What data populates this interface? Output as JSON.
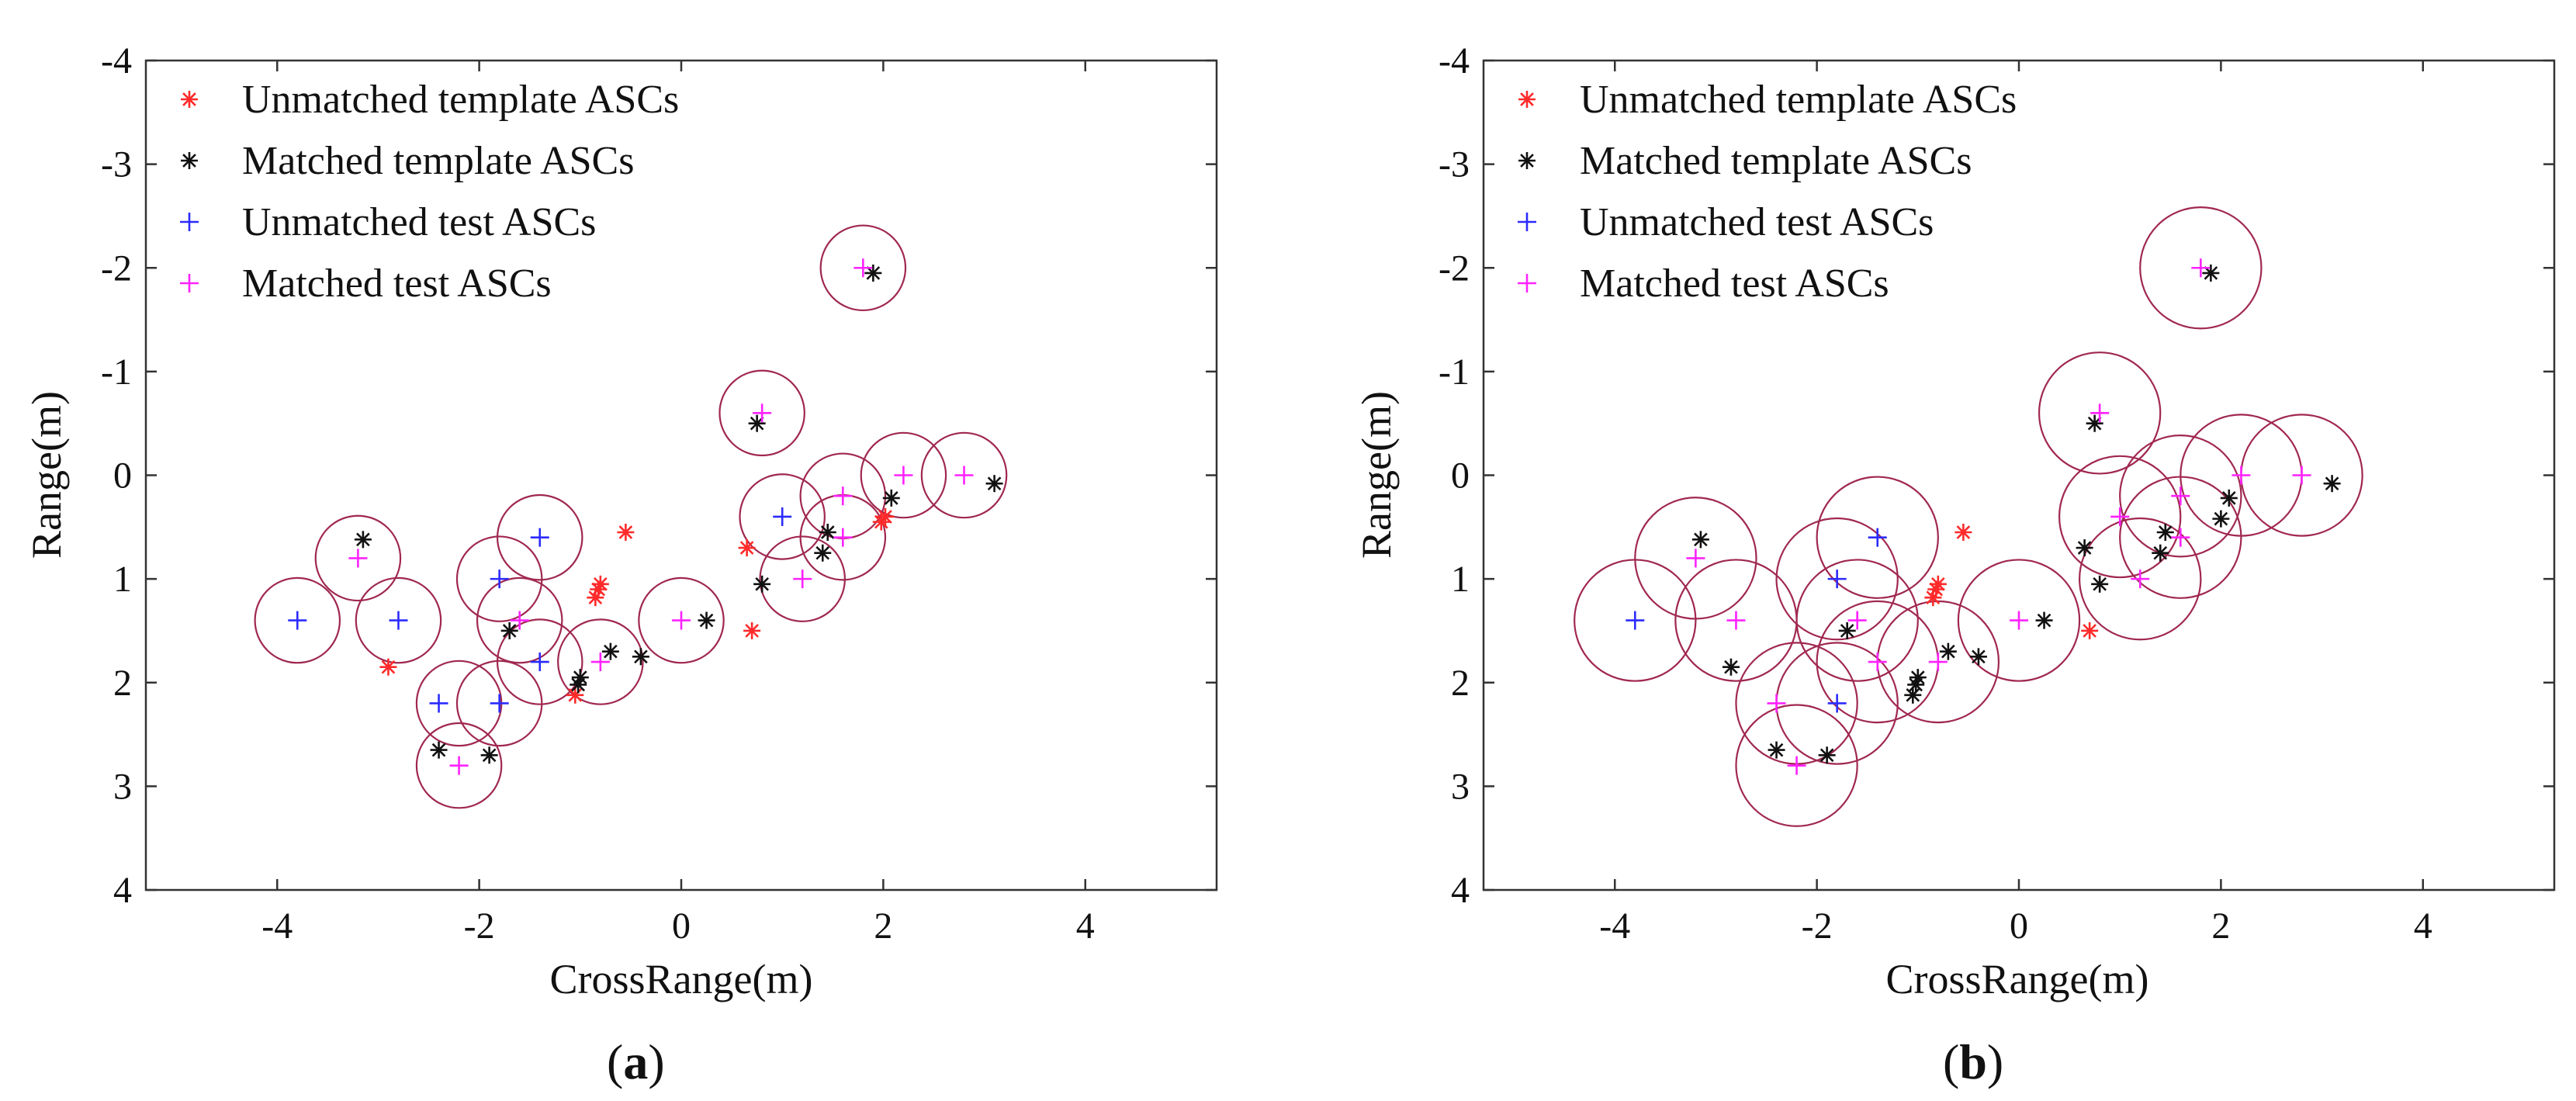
{
  "colors": {
    "unmatched_template": "#ff2a2a",
    "matched_template": "#111111",
    "unmatched_test": "#2b2bff",
    "matched_test": "#ff22ff",
    "circle": "#a0284f"
  },
  "chart_data": [
    {
      "type": "scatter",
      "panel_label": "a",
      "xlabel": "CrossRange(m)",
      "ylabel": "Range(m)",
      "xlim": [
        -5.3,
        5.3
      ],
      "ylim": [
        4,
        -4
      ],
      "xticks": [
        -4,
        -2,
        0,
        2,
        4
      ],
      "yticks": [
        -4,
        -3,
        -2,
        -1,
        0,
        1,
        2,
        3,
        4
      ],
      "xtick_labels": [
        "-4",
        "-2",
        "0",
        "2",
        "4"
      ],
      "ytick_labels": [
        "-4",
        "-3",
        "-2",
        "-1",
        "0",
        "1",
        "2",
        "3",
        "4"
      ],
      "legend": [
        {
          "label": "Unmatched template ASCs",
          "key": "unmatched_template",
          "marker": "*"
        },
        {
          "label": "Matched template ASCs",
          "key": "matched_template",
          "marker": "*"
        },
        {
          "label": "Unmatched test ASCs",
          "key": "unmatched_test",
          "marker": "+"
        },
        {
          "label": "Matched test ASCs",
          "key": "matched_test",
          "marker": "+"
        }
      ],
      "circle_radius": 0.42,
      "circles": [
        [
          -3.8,
          1.4
        ],
        [
          -3.2,
          0.8
        ],
        [
          -2.8,
          1.4
        ],
        [
          -2.2,
          2.2
        ],
        [
          -1.8,
          2.2
        ],
        [
          -1.8,
          1.0
        ],
        [
          -1.6,
          1.4
        ],
        [
          -1.4,
          0.6
        ],
        [
          -1.4,
          1.8
        ],
        [
          -0.8,
          1.8
        ],
        [
          -2.2,
          2.8
        ],
        [
          0.0,
          1.4
        ],
        [
          0.8,
          -0.6
        ],
        [
          1.0,
          0.4
        ],
        [
          1.2,
          1.0
        ],
        [
          1.6,
          0.2
        ],
        [
          1.6,
          0.6
        ],
        [
          2.2,
          0.0
        ],
        [
          2.8,
          0.0
        ],
        [
          1.8,
          -2.0
        ]
      ],
      "series": [
        {
          "key": "unmatched_template",
          "name": "Unmatched template ASCs",
          "points": [
            [
              -2.9,
              1.85
            ],
            [
              -1.05,
              2.12
            ],
            [
              -0.85,
              1.18
            ],
            [
              -0.82,
              1.1
            ],
            [
              -0.8,
              1.05
            ],
            [
              -0.55,
              0.55
            ],
            [
              0.65,
              0.7
            ],
            [
              0.7,
              1.5
            ],
            [
              1.98,
              0.45
            ],
            [
              2.02,
              0.4
            ]
          ]
        },
        {
          "key": "matched_template",
          "name": "Matched template ASCs",
          "points": [
            [
              -3.15,
              0.62
            ],
            [
              -2.4,
              2.65
            ],
            [
              -1.9,
              2.7
            ],
            [
              -1.7,
              1.5
            ],
            [
              -1.02,
              2.02
            ],
            [
              -1.0,
              1.95
            ],
            [
              -0.7,
              1.7
            ],
            [
              -0.4,
              1.75
            ],
            [
              0.25,
              1.4
            ],
            [
              0.75,
              -0.5
            ],
            [
              0.8,
              1.05
            ],
            [
              1.4,
              0.75
            ],
            [
              1.45,
              0.55
            ],
            [
              2.08,
              0.22
            ],
            [
              3.1,
              0.08
            ],
            [
              1.9,
              -1.95
            ]
          ]
        },
        {
          "key": "unmatched_test",
          "name": "Unmatched test ASCs",
          "points": [
            [
              -3.8,
              1.4
            ],
            [
              -2.8,
              1.4
            ],
            [
              -2.4,
              2.2
            ],
            [
              -1.8,
              2.2
            ],
            [
              -1.8,
              1.0
            ],
            [
              -1.4,
              0.6
            ],
            [
              -1.4,
              1.8
            ],
            [
              1.0,
              0.4
            ]
          ]
        },
        {
          "key": "matched_test",
          "name": "Matched test ASCs",
          "points": [
            [
              -3.2,
              0.8
            ],
            [
              -2.2,
              2.8
            ],
            [
              -1.6,
              1.4
            ],
            [
              -0.8,
              1.8
            ],
            [
              0.0,
              1.4
            ],
            [
              0.8,
              -0.6
            ],
            [
              1.2,
              1.0
            ],
            [
              1.6,
              0.2
            ],
            [
              1.6,
              0.6
            ],
            [
              2.2,
              0.0
            ],
            [
              2.8,
              0.0
            ],
            [
              1.8,
              -2.0
            ]
          ]
        }
      ]
    },
    {
      "type": "scatter",
      "panel_label": "b",
      "xlabel": "CrossRange(m)",
      "ylabel": "Range(m)",
      "xlim": [
        -5.3,
        5.3
      ],
      "ylim": [
        4,
        -4
      ],
      "xticks": [
        -4,
        -2,
        0,
        2,
        4
      ],
      "yticks": [
        -4,
        -3,
        -2,
        -1,
        0,
        1,
        2,
        3,
        4
      ],
      "xtick_labels": [
        "-4",
        "-2",
        "0",
        "2",
        "4"
      ],
      "ytick_labels": [
        "-4",
        "-3",
        "-2",
        "-1",
        "0",
        "1",
        "2",
        "3",
        "4"
      ],
      "legend": [
        {
          "label": "Unmatched template ASCs",
          "key": "unmatched_template",
          "marker": "*"
        },
        {
          "label": "Matched template ASCs",
          "key": "matched_template",
          "marker": "*"
        },
        {
          "label": "Unmatched test ASCs",
          "key": "unmatched_test",
          "marker": "+"
        },
        {
          "label": "Matched test ASCs",
          "key": "matched_test",
          "marker": "+"
        }
      ],
      "circle_radius": 0.6,
      "circles": [
        [
          -3.8,
          1.4
        ],
        [
          -3.2,
          0.8
        ],
        [
          -2.8,
          1.4
        ],
        [
          -2.2,
          2.2
        ],
        [
          -1.8,
          2.2
        ],
        [
          -1.8,
          1.0
        ],
        [
          -1.6,
          1.4
        ],
        [
          -1.4,
          0.6
        ],
        [
          -1.4,
          1.8
        ],
        [
          -0.8,
          1.8
        ],
        [
          -2.2,
          2.8
        ],
        [
          0.0,
          1.4
        ],
        [
          0.8,
          -0.6
        ],
        [
          1.0,
          0.4
        ],
        [
          1.2,
          1.0
        ],
        [
          1.6,
          0.2
        ],
        [
          1.6,
          0.6
        ],
        [
          2.2,
          0.0
        ],
        [
          2.8,
          0.0
        ],
        [
          1.8,
          -2.0
        ]
      ],
      "series": [
        {
          "key": "unmatched_template",
          "name": "Unmatched template ASCs",
          "points": [
            [
              -0.85,
              1.18
            ],
            [
              -0.82,
              1.1
            ],
            [
              -0.8,
              1.05
            ],
            [
              -0.55,
              0.55
            ],
            [
              0.7,
              1.5
            ]
          ]
        },
        {
          "key": "matched_template",
          "name": "Matched template ASCs",
          "points": [
            [
              -3.15,
              0.62
            ],
            [
              -2.85,
              1.85
            ],
            [
              -2.4,
              2.65
            ],
            [
              -1.9,
              2.7
            ],
            [
              -1.7,
              1.5
            ],
            [
              -1.05,
              2.12
            ],
            [
              -1.02,
              2.02
            ],
            [
              -1.0,
              1.95
            ],
            [
              -0.7,
              1.7
            ],
            [
              -0.4,
              1.75
            ],
            [
              0.25,
              1.4
            ],
            [
              0.65,
              0.7
            ],
            [
              0.75,
              -0.5
            ],
            [
              0.8,
              1.05
            ],
            [
              1.4,
              0.75
            ],
            [
              1.45,
              0.55
            ],
            [
              2.0,
              0.42
            ],
            [
              2.08,
              0.22
            ],
            [
              3.1,
              0.08
            ],
            [
              1.9,
              -1.95
            ]
          ]
        },
        {
          "key": "unmatched_test",
          "name": "Unmatched test ASCs",
          "points": [
            [
              -3.8,
              1.4
            ],
            [
              -1.8,
              2.2
            ],
            [
              -1.8,
              1.0
            ],
            [
              -1.4,
              0.6
            ]
          ]
        },
        {
          "key": "matched_test",
          "name": "Matched test ASCs",
          "points": [
            [
              -3.2,
              0.8
            ],
            [
              -2.8,
              1.4
            ],
            [
              -2.4,
              2.2
            ],
            [
              -2.2,
              2.8
            ],
            [
              -1.6,
              1.4
            ],
            [
              -1.4,
              1.8
            ],
            [
              -0.8,
              1.8
            ],
            [
              0.0,
              1.4
            ],
            [
              0.8,
              -0.6
            ],
            [
              1.0,
              0.4
            ],
            [
              1.2,
              1.0
            ],
            [
              1.6,
              0.2
            ],
            [
              1.6,
              0.6
            ],
            [
              2.2,
              0.0
            ],
            [
              2.8,
              0.0
            ],
            [
              1.8,
              -2.0
            ]
          ]
        }
      ]
    }
  ]
}
